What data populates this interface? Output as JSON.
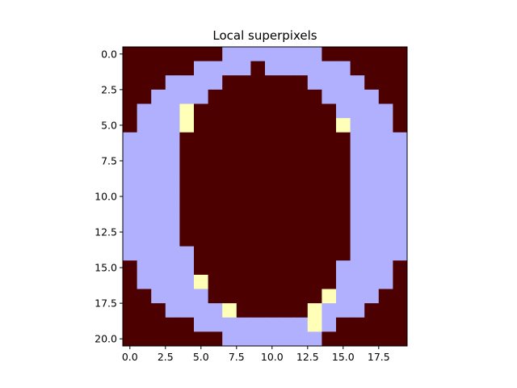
{
  "chart_data": {
    "type": "heatmap",
    "title": "Local superpixels",
    "xlabel": "",
    "ylabel": "",
    "xlim": [
      -0.5,
      19.5
    ],
    "ylim": [
      20.5,
      -0.5
    ],
    "x_ticks": [
      0.0,
      2.5,
      5.0,
      7.5,
      10.0,
      12.5,
      15.0,
      17.5
    ],
    "x_tick_labels": [
      "0.0",
      "2.5",
      "5.0",
      "7.5",
      "10.0",
      "12.5",
      "15.0",
      "17.5"
    ],
    "y_ticks": [
      0.0,
      2.5,
      5.0,
      7.5,
      10.0,
      12.5,
      15.0,
      17.5,
      20.0
    ],
    "y_tick_labels": [
      "0.0",
      "2.5",
      "5.0",
      "7.5",
      "10.0",
      "12.5",
      "15.0",
      "17.5",
      "20.0"
    ],
    "grid": false,
    "colormap": "gist_stern-like",
    "value_colors": {
      "0": "#4d0000",
      "1": "#b0b0ff",
      "2": "#ffffb8"
    },
    "matrix": [
      [
        0,
        0,
        0,
        0,
        0,
        0,
        0,
        1,
        1,
        1,
        1,
        1,
        1,
        1,
        0,
        0,
        0,
        0,
        0,
        0
      ],
      [
        0,
        0,
        0,
        0,
        0,
        1,
        1,
        1,
        1,
        0,
        1,
        1,
        1,
        1,
        1,
        1,
        0,
        0,
        0,
        0
      ],
      [
        0,
        0,
        0,
        1,
        1,
        1,
        1,
        0,
        0,
        0,
        0,
        0,
        0,
        1,
        1,
        1,
        1,
        0,
        0,
        0
      ],
      [
        0,
        0,
        1,
        1,
        1,
        1,
        0,
        0,
        0,
        0,
        0,
        0,
        0,
        0,
        1,
        1,
        1,
        1,
        0,
        0
      ],
      [
        0,
        1,
        1,
        1,
        2,
        0,
        0,
        0,
        0,
        0,
        0,
        0,
        0,
        0,
        0,
        1,
        1,
        1,
        1,
        0
      ],
      [
        0,
        1,
        1,
        1,
        2,
        0,
        0,
        0,
        0,
        0,
        0,
        0,
        0,
        0,
        0,
        2,
        1,
        1,
        1,
        0
      ],
      [
        1,
        1,
        1,
        1,
        0,
        0,
        0,
        0,
        0,
        0,
        0,
        0,
        0,
        0,
        0,
        0,
        1,
        1,
        1,
        1
      ],
      [
        1,
        1,
        1,
        1,
        0,
        0,
        0,
        0,
        0,
        0,
        0,
        0,
        0,
        0,
        0,
        0,
        1,
        1,
        1,
        1
      ],
      [
        1,
        1,
        1,
        1,
        0,
        0,
        0,
        0,
        0,
        0,
        0,
        0,
        0,
        0,
        0,
        0,
        1,
        1,
        1,
        1
      ],
      [
        1,
        1,
        1,
        1,
        0,
        0,
        0,
        0,
        0,
        0,
        0,
        0,
        0,
        0,
        0,
        0,
        1,
        1,
        1,
        1
      ],
      [
        1,
        1,
        1,
        1,
        0,
        0,
        0,
        0,
        0,
        0,
        0,
        0,
        0,
        0,
        0,
        0,
        1,
        1,
        1,
        1
      ],
      [
        1,
        1,
        1,
        1,
        0,
        0,
        0,
        0,
        0,
        0,
        0,
        0,
        0,
        0,
        0,
        0,
        1,
        1,
        1,
        1
      ],
      [
        1,
        1,
        1,
        1,
        0,
        0,
        0,
        0,
        0,
        0,
        0,
        0,
        0,
        0,
        0,
        0,
        1,
        1,
        1,
        1
      ],
      [
        1,
        1,
        1,
        1,
        0,
        0,
        0,
        0,
        0,
        0,
        0,
        0,
        0,
        0,
        0,
        0,
        1,
        1,
        1,
        1
      ],
      [
        1,
        1,
        1,
        1,
        1,
        0,
        0,
        0,
        0,
        0,
        0,
        0,
        0,
        0,
        0,
        0,
        1,
        1,
        1,
        1
      ],
      [
        0,
        1,
        1,
        1,
        1,
        0,
        0,
        0,
        0,
        0,
        0,
        0,
        0,
        0,
        0,
        1,
        1,
        1,
        1,
        0
      ],
      [
        0,
        1,
        1,
        1,
        1,
        2,
        0,
        0,
        0,
        0,
        0,
        0,
        0,
        0,
        0,
        1,
        1,
        1,
        1,
        0
      ],
      [
        0,
        0,
        1,
        1,
        1,
        1,
        0,
        0,
        0,
        0,
        0,
        0,
        0,
        0,
        2,
        1,
        1,
        1,
        0,
        0
      ],
      [
        0,
        0,
        0,
        1,
        1,
        1,
        1,
        2,
        0,
        0,
        0,
        0,
        0,
        2,
        1,
        1,
        1,
        0,
        0,
        0
      ],
      [
        0,
        0,
        0,
        0,
        0,
        1,
        1,
        1,
        1,
        1,
        1,
        1,
        1,
        2,
        1,
        0,
        0,
        0,
        0,
        0
      ],
      [
        0,
        0,
        0,
        0,
        0,
        0,
        0,
        1,
        1,
        1,
        1,
        1,
        1,
        1,
        0,
        0,
        0,
        0,
        0,
        0
      ]
    ]
  }
}
